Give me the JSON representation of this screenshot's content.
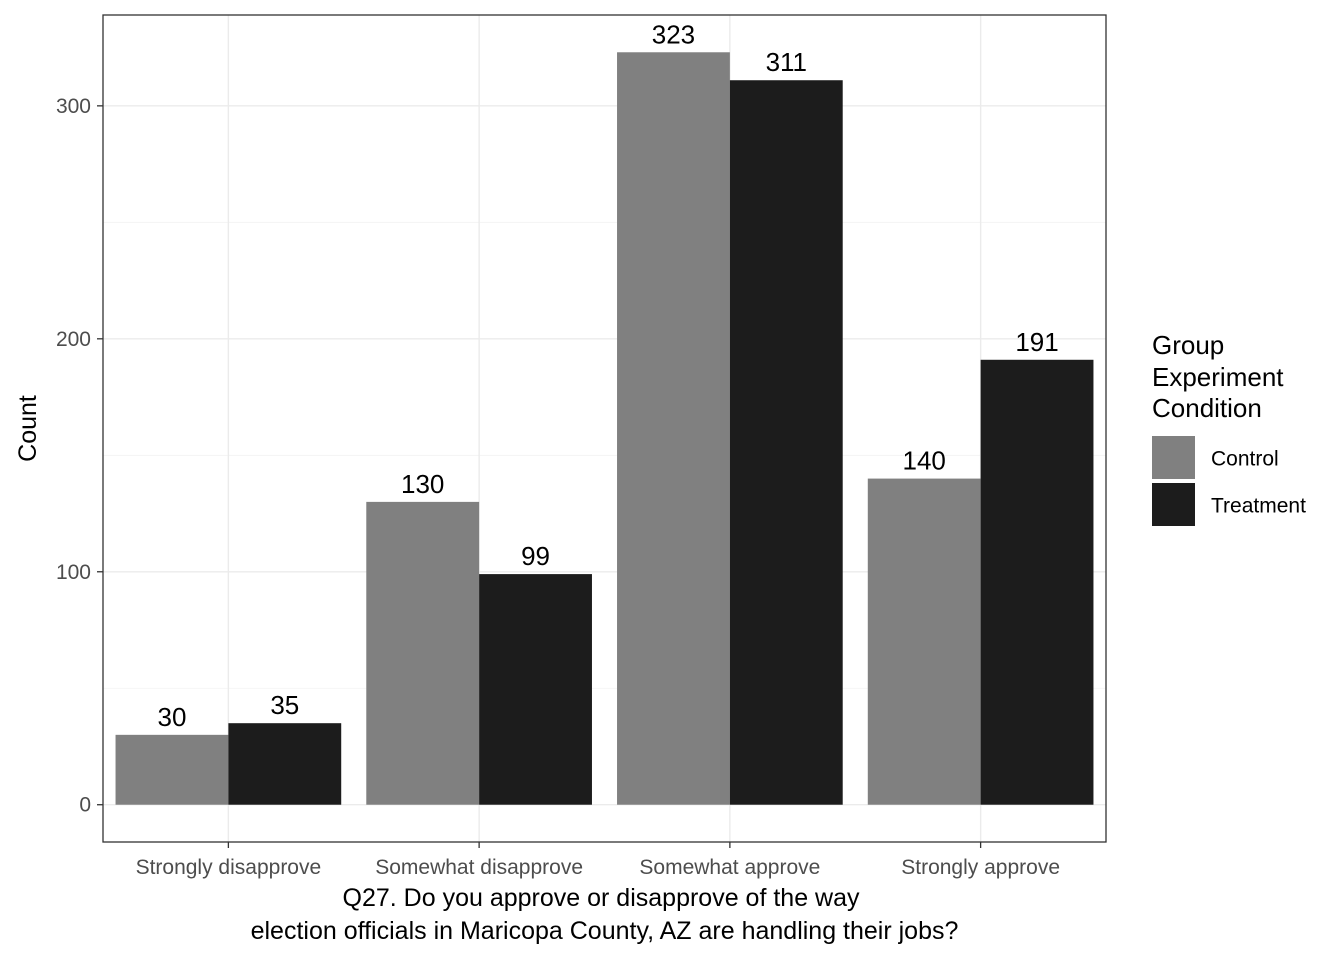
{
  "chart_data": {
    "type": "bar",
    "categories": [
      "Strongly disapprove",
      "Somewhat disapprove",
      "Somewhat approve",
      "Strongly approve"
    ],
    "series": [
      {
        "name": "Control",
        "values": [
          30,
          130,
          323,
          140
        ],
        "color": "#808080"
      },
      {
        "name": "Treatment",
        "values": [
          35,
          99,
          311,
          191
        ],
        "color": "#1c1c1c"
      }
    ],
    "xlabel": [
      "Q27. Do you approve or disapprove of the way",
      "election officials in Maricopa County, AZ are handling their jobs?"
    ],
    "ylabel": "Count",
    "ylim": [
      -16,
      339
    ],
    "yticks": [
      0,
      100,
      200,
      300
    ],
    "grid": true,
    "legend": {
      "title": [
        "Group",
        "Experiment",
        "Condition"
      ],
      "placement": "right"
    },
    "data_labels": true
  }
}
